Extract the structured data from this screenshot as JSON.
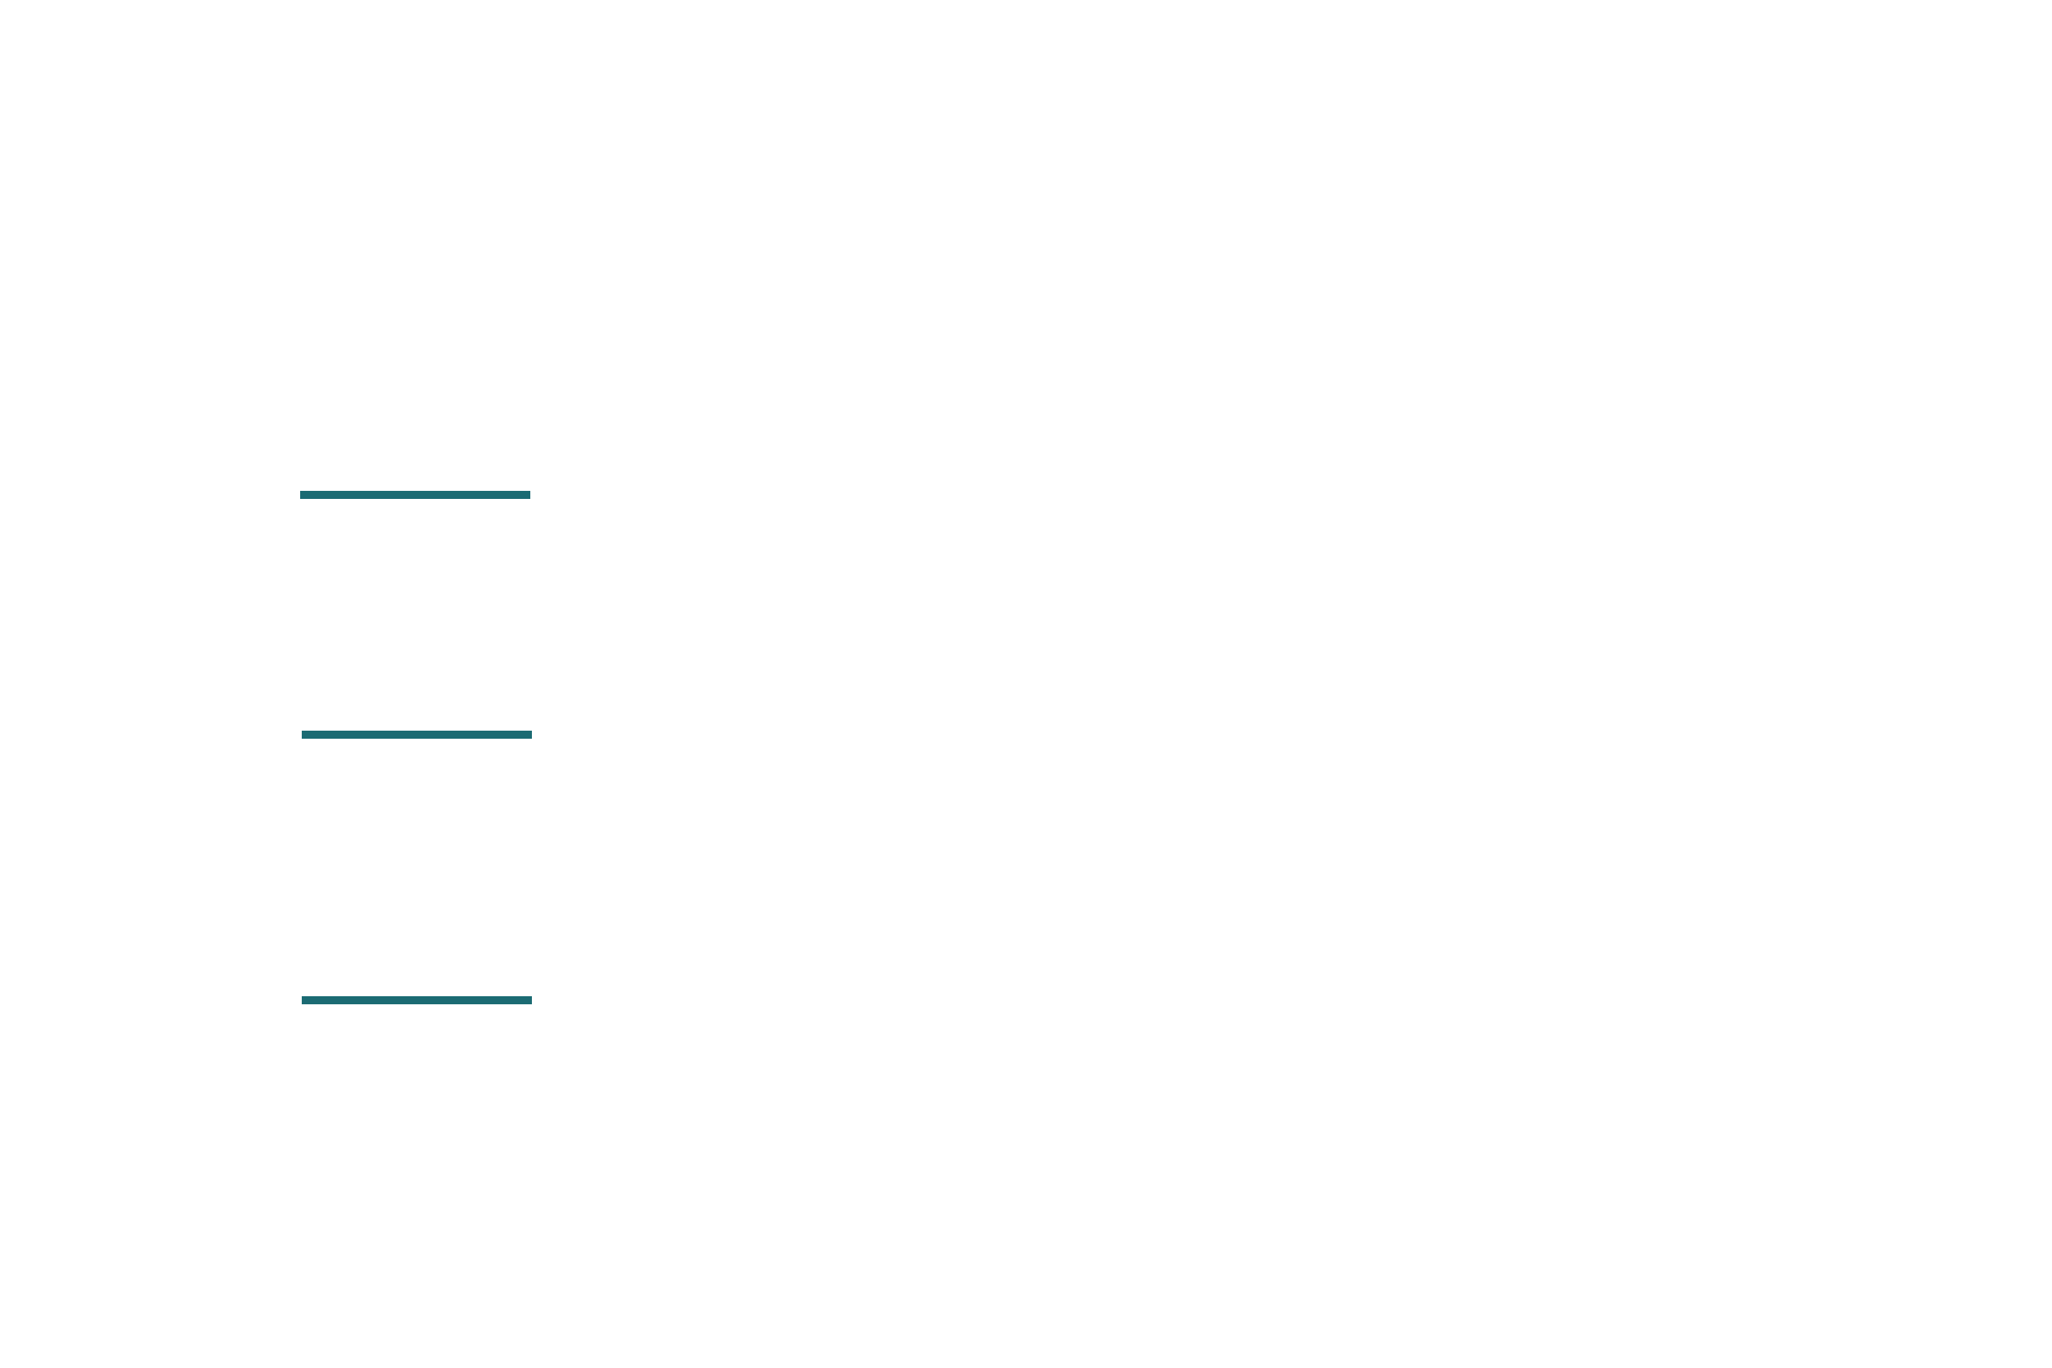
{
  "colors": {
    "background": "#ffffff",
    "accent": "#1b6b73"
  },
  "rules": [
    {
      "name": "divider-line"
    },
    {
      "name": "divider-line"
    },
    {
      "name": "divider-line"
    }
  ]
}
